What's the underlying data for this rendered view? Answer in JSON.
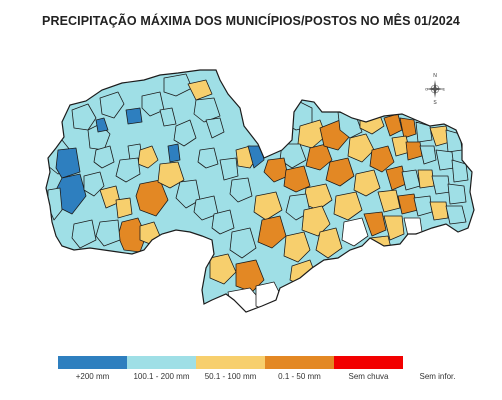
{
  "title": "PRECIPITAÇÃO MÁXIMA DOS MUNICÍPIOS/POSTOS NO MÊS 01/2024",
  "compass": {
    "n": "N",
    "s": "S",
    "e": "E",
    "w": "O"
  },
  "legend": [
    {
      "label": "+200 mm",
      "color": "#2e7fbf"
    },
    {
      "label": "100.1 - 200 mm",
      "color": "#9fdfe6"
    },
    {
      "label": "50.1 - 100 mm",
      "color": "#f7cf6d"
    },
    {
      "label": "0.1 - 50 mm",
      "color": "#e38824"
    },
    {
      "label": "Sem chuva",
      "color": "#f20000"
    },
    {
      "label": "Sem infor.",
      "color": "#ffffff"
    }
  ]
}
